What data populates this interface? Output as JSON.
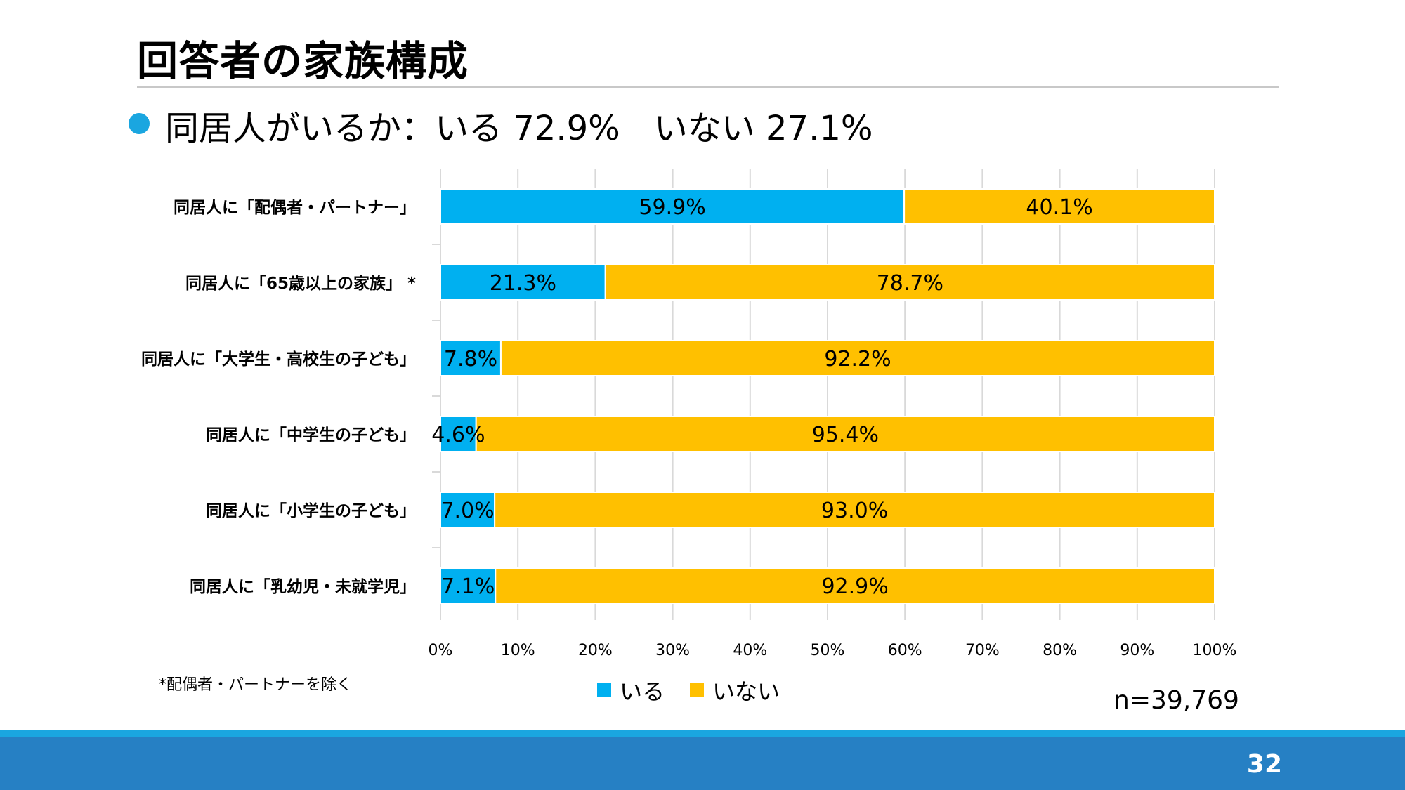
{
  "page": {
    "title": "回答者の家族構成",
    "bullet": "同居人がいるか：いる 72.9%　いない 27.1%",
    "footnote": "*配偶者・パートナーを除く",
    "n_label": "n=39,769",
    "page_number": "32"
  },
  "colors": {
    "iru": "#00b0f0",
    "inai": "#ffc000",
    "grid": "#d9d9d9",
    "footer": "#2680c4",
    "footer_stripe": "#1aa6e0"
  },
  "chart_data": {
    "type": "bar",
    "orientation": "horizontal",
    "stacked": true,
    "categories": [
      "同居人に「配偶者・パートナー」",
      "同居人に「65歳以上の家族」 *",
      "同居人に「大学生・高校生の子ども」",
      "同居人に「中学生の子ども」",
      "同居人に「小学生の子ども」",
      "同居人に「乳幼児・未就学児」"
    ],
    "series": [
      {
        "name": "いる",
        "values": [
          59.9,
          21.3,
          7.8,
          4.6,
          7.0,
          7.1
        ],
        "labels": [
          "59.9%",
          "21.3%",
          "7.8%",
          "4.6%",
          "7.0%",
          "7.1%"
        ]
      },
      {
        "name": "いない",
        "values": [
          40.1,
          78.7,
          92.2,
          95.4,
          93.0,
          92.9
        ],
        "labels": [
          "40.1%",
          "78.7%",
          "92.2%",
          "95.4%",
          "93.0%",
          "92.9%"
        ]
      }
    ],
    "xlim": [
      0,
      100
    ],
    "xticks": [
      "0%",
      "10%",
      "20%",
      "30%",
      "40%",
      "50%",
      "60%",
      "70%",
      "80%",
      "90%",
      "100%"
    ],
    "grid": true,
    "legend_position": "bottom"
  }
}
